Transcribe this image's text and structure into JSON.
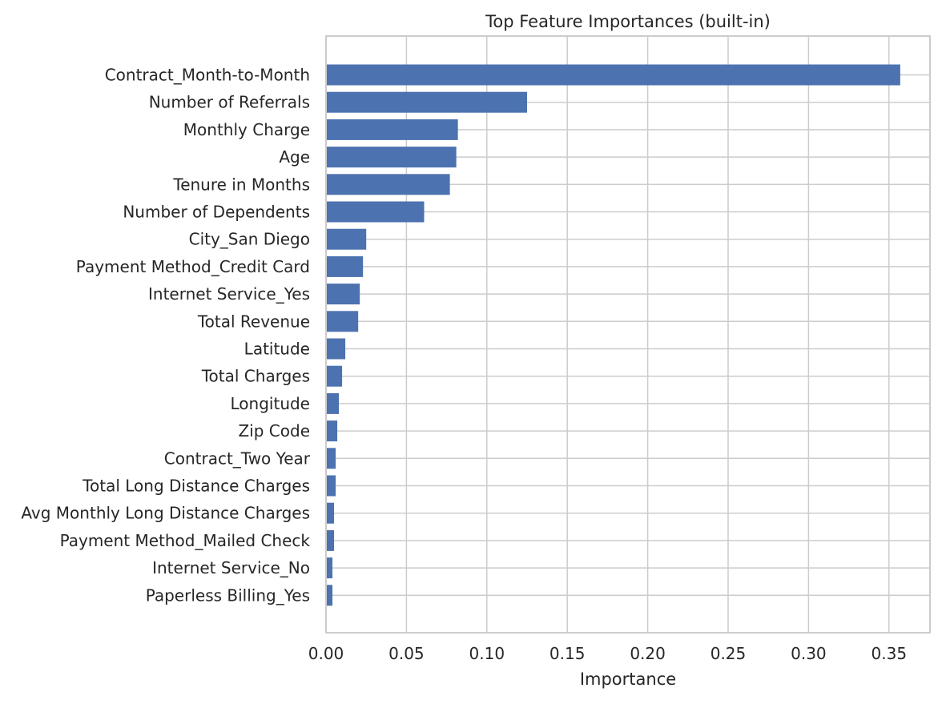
{
  "chart_data": {
    "type": "bar",
    "orientation": "horizontal",
    "title": "Top Feature Importances (built-in)",
    "xlabel": "Importance",
    "ylabel": "",
    "xlim": [
      0,
      0.3755
    ],
    "xticks": [
      0.0,
      0.05,
      0.1,
      0.15,
      0.2,
      0.25,
      0.3,
      0.35
    ],
    "xtick_labels": [
      "0.00",
      "0.05",
      "0.10",
      "0.15",
      "0.20",
      "0.25",
      "0.30",
      "0.35"
    ],
    "grid": true,
    "bar_color": "#4c72b0",
    "grid_color": "#cccccc",
    "categories": [
      "Contract_Month-to-Month",
      "Number of Referrals",
      "Monthly Charge",
      "Age",
      "Tenure in Months",
      "Number of Dependents",
      "City_San Diego",
      "Payment Method_Credit Card",
      "Internet Service_Yes",
      "Total Revenue",
      "Latitude",
      "Total Charges",
      "Longitude",
      "Zip Code",
      "Contract_Two Year",
      "Total Long Distance Charges",
      "Avg Monthly Long Distance Charges",
      "Payment Method_Mailed Check",
      "Internet Service_No",
      "Paperless Billing_Yes"
    ],
    "values": [
      0.357,
      0.125,
      0.082,
      0.081,
      0.077,
      0.061,
      0.025,
      0.023,
      0.021,
      0.02,
      0.012,
      0.01,
      0.008,
      0.007,
      0.006,
      0.006,
      0.005,
      0.005,
      0.004,
      0.004
    ]
  }
}
